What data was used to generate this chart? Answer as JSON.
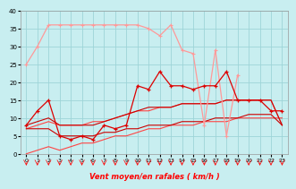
{
  "xlabel": "Vent moyen/en rafales ( km/h )",
  "bg_color": "#c8eef0",
  "grid_color": "#9ed4d8",
  "xlim": [
    -0.5,
    23.5
  ],
  "ylim": [
    0,
    40
  ],
  "yticks": [
    0,
    5,
    10,
    15,
    20,
    25,
    30,
    35,
    40
  ],
  "xticks": [
    0,
    1,
    2,
    3,
    4,
    5,
    6,
    7,
    8,
    9,
    10,
    11,
    12,
    13,
    14,
    15,
    16,
    17,
    18,
    19,
    20,
    21,
    22,
    23
  ],
  "hours": [
    0,
    1,
    2,
    3,
    4,
    5,
    6,
    7,
    8,
    9,
    10,
    11,
    12,
    13,
    14,
    15,
    16,
    17,
    18,
    19,
    20,
    21,
    22,
    23
  ],
  "rafales": [
    25,
    30,
    36,
    36,
    36,
    36,
    36,
    36,
    36,
    36,
    36,
    35,
    33,
    36,
    29,
    28,
    8,
    29,
    5,
    22,
    null,
    null,
    null,
    null
  ],
  "moyen": [
    8,
    12,
    15,
    5,
    4,
    5,
    4,
    8,
    7,
    8,
    19,
    18,
    23,
    19,
    19,
    18,
    19,
    19,
    23,
    15,
    15,
    15,
    12,
    12
  ],
  "trend_raf_min": [
    0,
    1,
    2,
    1,
    2,
    3,
    3,
    4,
    5,
    5,
    6,
    7,
    7,
    8,
    8,
    8,
    9,
    9,
    9,
    10,
    10,
    10,
    10,
    10
  ],
  "trend_raf_max": [
    7,
    8,
    9,
    8,
    8,
    8,
    9,
    9,
    10,
    11,
    12,
    12,
    13,
    13,
    14,
    14,
    14,
    14,
    15,
    15,
    15,
    15,
    15,
    8
  ],
  "trend_moy_min": [
    7,
    7,
    7,
    5,
    5,
    5,
    5,
    6,
    6,
    7,
    7,
    8,
    8,
    8,
    9,
    9,
    9,
    10,
    10,
    10,
    11,
    11,
    11,
    8
  ],
  "trend_moy_max": [
    8,
    9,
    10,
    8,
    8,
    8,
    8,
    9,
    10,
    11,
    12,
    13,
    13,
    13,
    14,
    14,
    14,
    14,
    15,
    15,
    15,
    15,
    15,
    8
  ],
  "color_rafales": "#ff9999",
  "color_moyen": "#dd0000",
  "color_trend_raf": "#ff4444",
  "color_trend_moy": "#cc0000"
}
